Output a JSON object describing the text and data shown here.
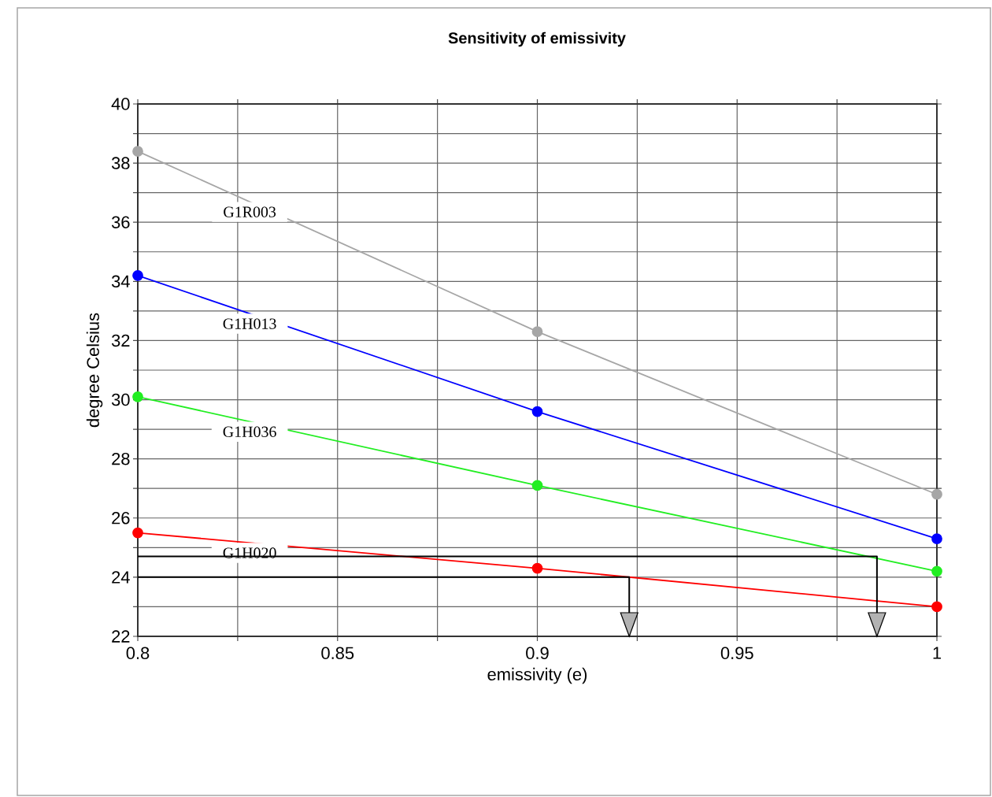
{
  "chart_data": {
    "type": "line",
    "title": "Sensitivity of emissivity",
    "xlabel": "emissivity (e)",
    "ylabel": "degree Celsius",
    "xlim": [
      0.8,
      1
    ],
    "ylim": [
      22,
      40
    ],
    "xticks": [
      0.8,
      {
        "value": 0.825,
        "label": null
      },
      0.85,
      {
        "value": 0.875,
        "label": null
      },
      0.9,
      {
        "value": 0.925,
        "label": null
      },
      0.95,
      {
        "value": 0.975,
        "label": null
      },
      1
    ],
    "yticks": [
      22,
      {
        "value": 23,
        "label": null
      },
      24,
      {
        "value": 25,
        "label": null
      },
      26,
      {
        "value": 27,
        "label": null
      },
      28,
      {
        "value": 29,
        "label": null
      },
      30,
      {
        "value": 31,
        "label": null
      },
      32,
      {
        "value": 33,
        "label": null
      },
      34,
      {
        "value": 35,
        "label": null
      },
      36,
      {
        "value": 37,
        "label": null
      },
      38,
      {
        "value": 39,
        "label": null
      },
      40
    ],
    "grid": true,
    "legend": false,
    "marker": "circle",
    "line_style": "solid",
    "x": [
      0.8,
      0.9,
      1
    ],
    "series": [
      {
        "name": "G1R003",
        "color": "#a6a6a6",
        "values": [
          38.4,
          32.3,
          26.8
        ]
      },
      {
        "name": "G1H013",
        "color": "#0000ff",
        "values": [
          34.2,
          29.6,
          25.3
        ]
      },
      {
        "name": "G1H036",
        "color": "#22ee22",
        "values": [
          30.1,
          27.1,
          24.2
        ]
      },
      {
        "name": "G1H020",
        "color": "#ff0000",
        "values": [
          25.5,
          24.3,
          23.0
        ]
      },
      {
        "color": "#000000",
        "marker": "none",
        "x": [
          0.8,
          0.985,
          0.985
        ],
        "values": [
          24.7,
          24.7,
          22.0
        ]
      },
      {
        "color": "#000000",
        "marker": "none",
        "x": [
          0.8,
          0.923,
          0.923
        ],
        "values": [
          24.0,
          24.0,
          22.0
        ]
      }
    ]
  }
}
